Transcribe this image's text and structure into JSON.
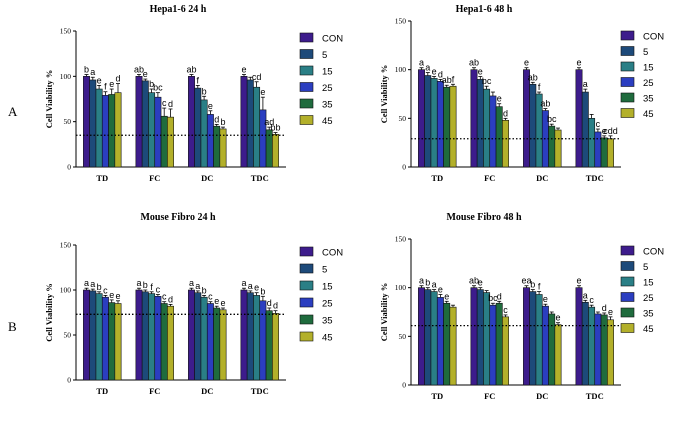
{
  "panel_labels": [
    "A",
    "B"
  ],
  "series_colors": [
    "#3d1c8c",
    "#1d4a7a",
    "#2a7f86",
    "#2b3ec0",
    "#1f6b3d",
    "#b3b02a"
  ],
  "chart_data": [
    {
      "type": "bar",
      "title": "Hepa1-6 24 h",
      "ylabel": "Cell Viability %",
      "ylim": [
        0,
        150
      ],
      "yticks": [
        "0",
        "50",
        "100",
        "150"
      ],
      "categories": [
        "TD",
        "FC",
        "DC",
        "TDC"
      ],
      "dotted_line": 35,
      "legend": [
        "CON",
        "5",
        "15",
        "25",
        "35",
        "45"
      ],
      "series": [
        {
          "name": "CON",
          "values": [
            100,
            100,
            100,
            100
          ]
        },
        {
          "name": "5",
          "values": [
            96,
            95,
            87,
            96
          ]
        },
        {
          "name": "15",
          "values": [
            86,
            82,
            74,
            88
          ]
        },
        {
          "name": "25",
          "values": [
            79,
            77,
            58,
            63
          ]
        },
        {
          "name": "35",
          "values": [
            80,
            56,
            45,
            41
          ]
        },
        {
          "name": "45",
          "values": [
            82,
            55,
            42,
            36
          ]
        }
      ],
      "errors": [
        [
          2,
          2,
          2,
          2
        ],
        [
          3,
          2,
          3,
          3
        ],
        [
          4,
          4,
          4,
          6
        ],
        [
          4,
          5,
          4,
          14
        ],
        [
          6,
          9,
          2,
          3
        ],
        [
          10,
          9,
          2,
          2
        ]
      ],
      "labels": [
        [
          "b",
          "ab",
          "ab",
          "e"
        ],
        [
          "a",
          "e",
          "f",
          ""
        ],
        [
          "e",
          "b",
          "b",
          "cd"
        ],
        [
          "f",
          "bc",
          "e",
          "e"
        ],
        [
          "e",
          "c",
          "d",
          "ad"
        ],
        [
          "d",
          "d",
          "b",
          "bb"
        ]
      ]
    },
    {
      "type": "bar",
      "title": "Hepa1-6 48 h",
      "ylabel": "Cell Viability %",
      "ylim": [
        0,
        150
      ],
      "yticks": [
        "0",
        "50",
        "100",
        "150"
      ],
      "categories": [
        "TD",
        "FC",
        "DC",
        "TDC"
      ],
      "dotted_line": 29,
      "legend": [
        "CON",
        "5",
        "15",
        "25",
        "35",
        "45"
      ],
      "series": [
        {
          "name": "CON",
          "values": [
            100,
            100,
            100,
            100
          ]
        },
        {
          "name": "5",
          "values": [
            94,
            90,
            85,
            77
          ]
        },
        {
          "name": "15",
          "values": [
            91,
            80,
            75,
            50
          ]
        },
        {
          "name": "25",
          "values": [
            88,
            73,
            58,
            36
          ]
        },
        {
          "name": "35",
          "values": [
            82,
            62,
            42,
            30
          ]
        },
        {
          "name": "45",
          "values": [
            83,
            48,
            38,
            29
          ]
        }
      ],
      "errors": [
        [
          2,
          2,
          2,
          2
        ],
        [
          3,
          3,
          2,
          3
        ],
        [
          2,
          3,
          2,
          4
        ],
        [
          2,
          4,
          2,
          3
        ],
        [
          2,
          3,
          2,
          2
        ],
        [
          2,
          2,
          2,
          3
        ]
      ],
      "labels": [
        [
          "a",
          "ab",
          "e",
          "e"
        ],
        [
          "a",
          "e",
          "ab",
          "a"
        ],
        [
          "e",
          "bc",
          "f",
          ""
        ],
        [
          "d",
          "",
          "ab",
          "c"
        ],
        [
          "ab",
          "e",
          "bc",
          "e"
        ],
        [
          "f",
          "d",
          "",
          "cdd"
        ]
      ]
    },
    {
      "type": "bar",
      "title": "Mouse Fibro 24 h",
      "ylabel": "Cell Viability %",
      "ylim": [
        0,
        150
      ],
      "yticks": [
        "0",
        "50",
        "100",
        "150"
      ],
      "categories": [
        "TD",
        "FC",
        "DC",
        "TDC"
      ],
      "dotted_line": 73,
      "legend": [
        "CON",
        "5",
        "15",
        "25",
        "35",
        "45"
      ],
      "series": [
        {
          "name": "CON",
          "values": [
            100,
            100,
            100,
            100
          ]
        },
        {
          "name": "5",
          "values": [
            99,
            98,
            97,
            97
          ]
        },
        {
          "name": "15",
          "values": [
            96,
            96,
            92,
            94
          ]
        },
        {
          "name": "25",
          "values": [
            92,
            93,
            85,
            88
          ]
        },
        {
          "name": "35",
          "values": [
            86,
            85,
            80,
            77
          ]
        },
        {
          "name": "45",
          "values": [
            85,
            82,
            78,
            74
          ]
        }
      ],
      "errors": [
        [
          2,
          2,
          2,
          2
        ],
        [
          2,
          2,
          2,
          2
        ],
        [
          2,
          2,
          2,
          3
        ],
        [
          2,
          2,
          2,
          5
        ],
        [
          3,
          2,
          2,
          3
        ],
        [
          3,
          2,
          2,
          3
        ]
      ],
      "labels": [
        [
          "a",
          "a",
          "a",
          "a"
        ],
        [
          "a",
          "b",
          "a",
          "a"
        ],
        [
          "b",
          "f",
          "b",
          "e"
        ],
        [
          "c",
          "c",
          "c",
          "b"
        ],
        [
          "e",
          "c",
          "e",
          "d"
        ],
        [
          "e",
          "d",
          "e",
          "d"
        ]
      ]
    },
    {
      "type": "bar",
      "title": "Mouse Fibro 48 h",
      "ylabel": "Cell Viability %",
      "ylim": [
        0,
        150
      ],
      "yticks": [
        "0",
        "50",
        "100",
        "150"
      ],
      "categories": [
        "TD",
        "FC",
        "DC",
        "TDC"
      ],
      "dotted_line": 61,
      "legend": [
        "CON",
        "5",
        "15",
        "25",
        "35",
        "45"
      ],
      "series": [
        {
          "name": "CON",
          "values": [
            100,
            100,
            100,
            100
          ]
        },
        {
          "name": "5",
          "values": [
            98,
            98,
            96,
            85
          ]
        },
        {
          "name": "15",
          "values": [
            96,
            95,
            93,
            80
          ]
        },
        {
          "name": "25",
          "values": [
            90,
            82,
            81,
            73
          ]
        },
        {
          "name": "35",
          "values": [
            84,
            84,
            73,
            72
          ]
        },
        {
          "name": "45",
          "values": [
            80,
            70,
            62,
            67
          ]
        }
      ],
      "errors": [
        [
          2,
          2,
          2,
          2
        ],
        [
          2,
          2,
          2,
          2
        ],
        [
          2,
          2,
          3,
          2
        ],
        [
          3,
          2,
          2,
          2
        ],
        [
          2,
          2,
          2,
          2
        ],
        [
          2,
          2,
          2,
          3
        ]
      ],
      "labels": [
        [
          "a",
          "ab",
          "ea",
          "e"
        ],
        [
          "b",
          "e",
          "b",
          "a"
        ],
        [
          "a",
          "",
          "f",
          "c"
        ],
        [
          "e",
          "bc",
          "e",
          ""
        ],
        [
          "e",
          "d",
          "",
          "d"
        ],
        [
          "",
          "c",
          "e",
          "e"
        ]
      ]
    }
  ]
}
